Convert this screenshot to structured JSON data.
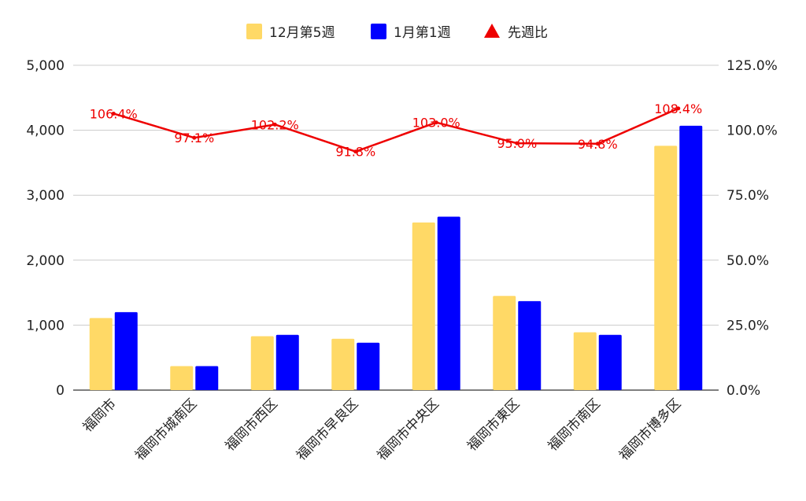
{
  "chart_data": {
    "type": "bar",
    "title": "",
    "categories": [
      "福岡市",
      "福岡市城南区",
      "福岡市西区",
      "福岡市早良区",
      "福岡市中央区",
      "福岡市東区",
      "福岡市南区",
      "福岡市博多区"
    ],
    "series": [
      {
        "name": "12月第5週",
        "type": "bar",
        "axis": "left",
        "color": "#FFD966",
        "values": [
          1110,
          370,
          830,
          790,
          2580,
          1450,
          890,
          3760
        ]
      },
      {
        "name": "1月第1週",
        "type": "bar",
        "axis": "left",
        "color": "#0000FF",
        "values": [
          1200,
          370,
          850,
          730,
          2670,
          1370,
          850,
          4070
        ]
      },
      {
        "name": "先週比",
        "type": "line",
        "axis": "right",
        "color": "#EE0000",
        "values": [
          106.4,
          97.1,
          102.2,
          91.8,
          103.0,
          95.0,
          94.8,
          108.4
        ],
        "labels": [
          "106.4%",
          "97.1%",
          "102.2%",
          "91.8%",
          "103.0%",
          "95.0%",
          "94.8%",
          "108.4%"
        ]
      }
    ],
    "y_left": {
      "min": 0,
      "max": 5000,
      "ticks": [
        0,
        1000,
        2000,
        3000,
        4000,
        5000
      ],
      "tick_labels": [
        "0",
        "1,000",
        "2,000",
        "3,000",
        "4,000",
        "5,000"
      ]
    },
    "y_right": {
      "min": 0,
      "max": 125,
      "ticks": [
        0,
        25,
        50,
        75,
        100,
        125
      ],
      "tick_labels": [
        "0.0%",
        "25.0%",
        "50.0%",
        "75.0%",
        "100.0%",
        "125.0%"
      ]
    },
    "legend_position": "top",
    "grid": true
  }
}
